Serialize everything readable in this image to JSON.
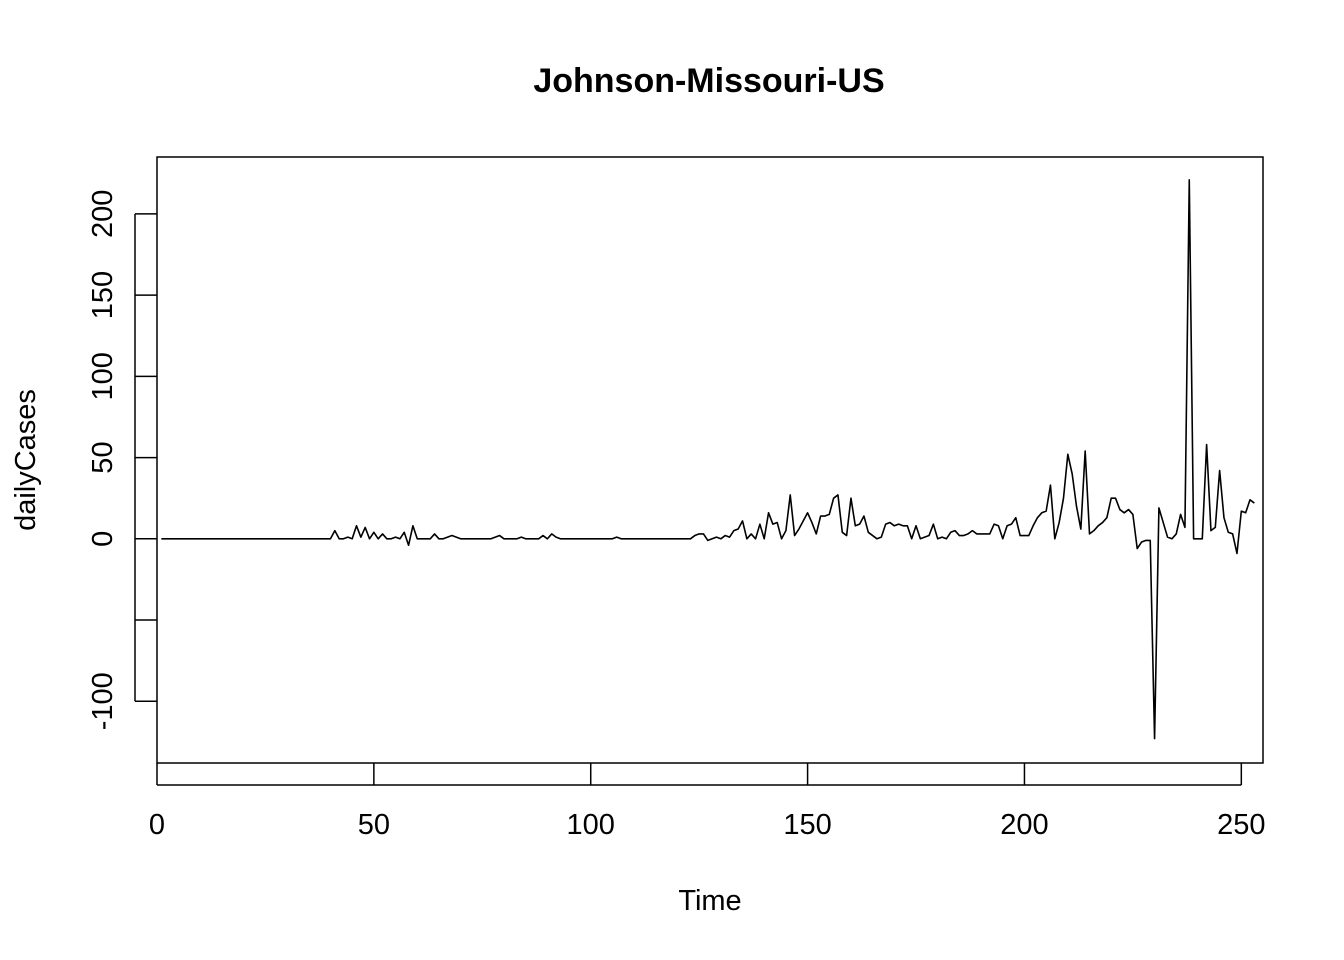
{
  "chart_data": {
    "type": "line",
    "title": "Johnson-Missouri-US",
    "xlabel": "Time",
    "ylabel": "dailyCases",
    "xlim": [
      0,
      255
    ],
    "ylim": [
      -138,
      235
    ],
    "x_ticks": [
      0,
      50,
      100,
      150,
      200,
      250
    ],
    "x_tick_labels": [
      "0",
      "50",
      "100",
      "150",
      "200",
      "250"
    ],
    "y_ticks": [
      -100,
      -50,
      0,
      50,
      100,
      150,
      200
    ],
    "y_tick_labels": [
      "-100",
      "",
      "0",
      "50",
      "100",
      "150",
      "200"
    ],
    "grid": false,
    "legend": "none",
    "x_start": 1,
    "series": [
      {
        "color": "#000000",
        "values": [
          0,
          0,
          0,
          0,
          0,
          0,
          0,
          0,
          0,
          0,
          0,
          0,
          0,
          0,
          0,
          0,
          0,
          0,
          0,
          0,
          0,
          0,
          0,
          0,
          0,
          0,
          0,
          0,
          0,
          0,
          0,
          0,
          0,
          0,
          0,
          0,
          0,
          0,
          0,
          0,
          5,
          0,
          0,
          1,
          0,
          8,
          1,
          7,
          0,
          4,
          0,
          3,
          0,
          0,
          1,
          0,
          4,
          -4,
          8,
          0,
          0,
          0,
          0,
          3,
          0,
          0,
          1,
          2,
          1,
          0,
          0,
          0,
          0,
          0,
          0,
          0,
          0,
          1,
          2,
          0,
          0,
          0,
          0,
          1,
          0,
          0,
          0,
          0,
          2,
          0,
          3,
          1,
          0,
          0,
          0,
          0,
          0,
          0,
          0,
          0,
          0,
          0,
          0,
          0,
          0,
          1,
          0,
          0,
          0,
          0,
          0,
          0,
          0,
          0,
          0,
          0,
          0,
          0,
          0,
          0,
          0,
          0,
          0,
          2,
          3,
          3,
          -1,
          0,
          1,
          0,
          2,
          1,
          5,
          6,
          11,
          0,
          3,
          0,
          9,
          0,
          16,
          9,
          10,
          0,
          5,
          27,
          2,
          6,
          11,
          16,
          10,
          3,
          14,
          14,
          15,
          25,
          27,
          4,
          2,
          25,
          8,
          9,
          14,
          4,
          2,
          0,
          1,
          9,
          10,
          8,
          9,
          8,
          8,
          0,
          8,
          0,
          1,
          2,
          9,
          0,
          1,
          0,
          4,
          5,
          2,
          2,
          3,
          5,
          3,
          3,
          3,
          3,
          9,
          8,
          0,
          8,
          9,
          13,
          2,
          2,
          2,
          8,
          13,
          16,
          17,
          33,
          0,
          10,
          25,
          52,
          40,
          20,
          6,
          54,
          3,
          5,
          8,
          10,
          13,
          25,
          25,
          18,
          16,
          18,
          15,
          -6,
          -2,
          -1,
          -1,
          -123,
          19,
          10,
          1,
          0,
          3,
          15,
          7,
          221,
          0,
          0,
          0,
          58,
          5,
          7,
          42,
          13,
          4,
          3,
          -9,
          17,
          16,
          24,
          22
        ]
      }
    ]
  }
}
